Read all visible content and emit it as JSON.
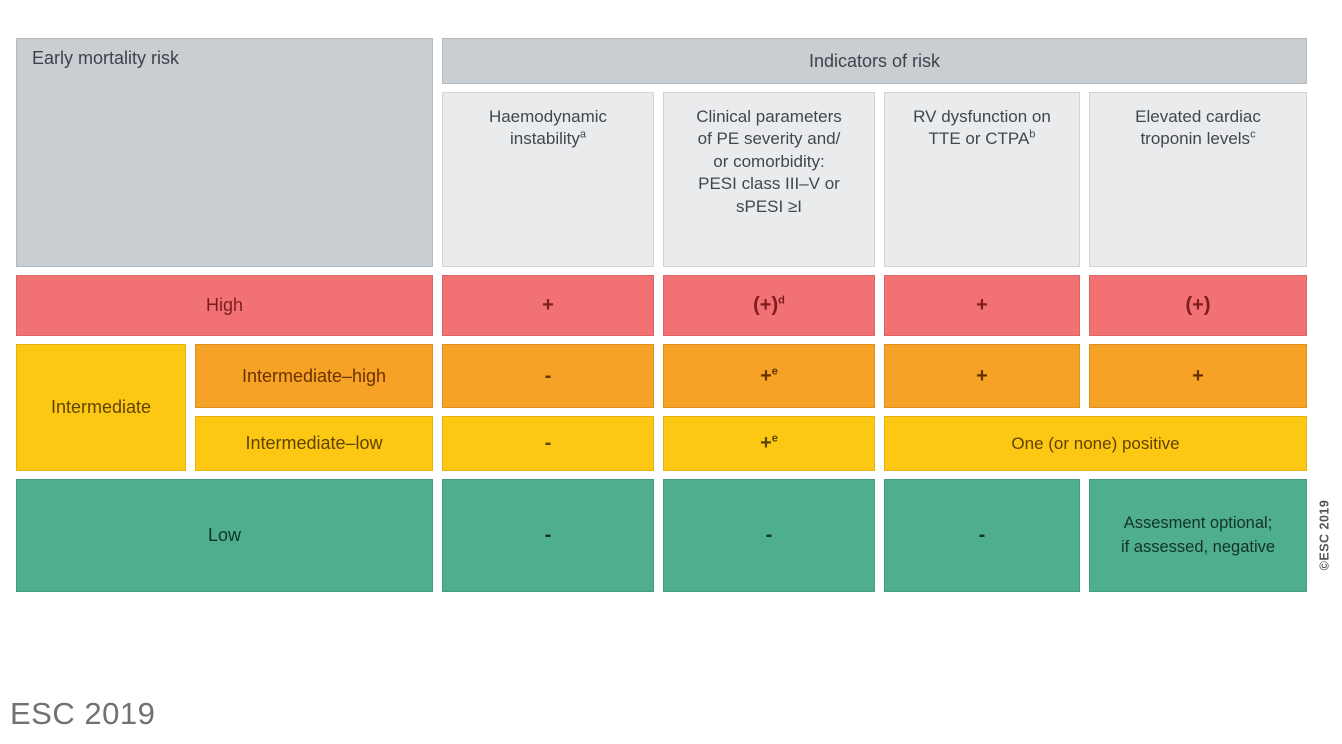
{
  "page": {
    "footer": "ESC 2019",
    "vertical_credit": "©ESC 2019"
  },
  "colors": {
    "high_row": "#f27172",
    "intermediate_high_row": "#f5a227",
    "intermediate_row": "#fdc813",
    "low_row": "#4fae8d",
    "header_dark_gray": "#c9ced3",
    "header_light_gray": "#e9ebed"
  },
  "table": {
    "corner_header": "Early mortality risk",
    "group_header": "Indicators of risk",
    "columns": [
      {
        "text": "Haemodynamic\ninstability",
        "sup": "a"
      },
      {
        "text": "Clinical parameters\nof PE severity and/\nor comorbidity:\nPESI class III–V or\nsPESI ≥I",
        "sup": ""
      },
      {
        "text": "RV dysfunction on\nTTE or CTPA",
        "sup": "b"
      },
      {
        "text": "Elevated cardiac\ntroponin levels",
        "sup": "c"
      }
    ],
    "rows": {
      "high": {
        "label": "High",
        "cells": [
          {
            "text": "+",
            "sup": ""
          },
          {
            "text": "(+)",
            "sup": "d"
          },
          {
            "text": "+",
            "sup": ""
          },
          {
            "text": "(+)",
            "sup": ""
          }
        ]
      },
      "intermediate": {
        "label": "Intermediate"
      },
      "intermediate_high": {
        "label": "Intermediate–high",
        "cells": [
          {
            "text": "-",
            "sup": ""
          },
          {
            "text": "+",
            "sup": "e"
          },
          {
            "text": "+",
            "sup": ""
          },
          {
            "text": "+",
            "sup": ""
          }
        ]
      },
      "intermediate_low": {
        "label": "Intermediate–low",
        "cells": [
          {
            "text": "-",
            "sup": ""
          },
          {
            "text": "+",
            "sup": "e"
          }
        ],
        "merged": "One (or none) positive"
      },
      "low": {
        "label": "Low",
        "cells": [
          {
            "text": "-",
            "sup": ""
          },
          {
            "text": "-",
            "sup": ""
          },
          {
            "text": "-",
            "sup": ""
          }
        ],
        "note": "Assesment optional;\nif assessed, negative"
      }
    }
  }
}
